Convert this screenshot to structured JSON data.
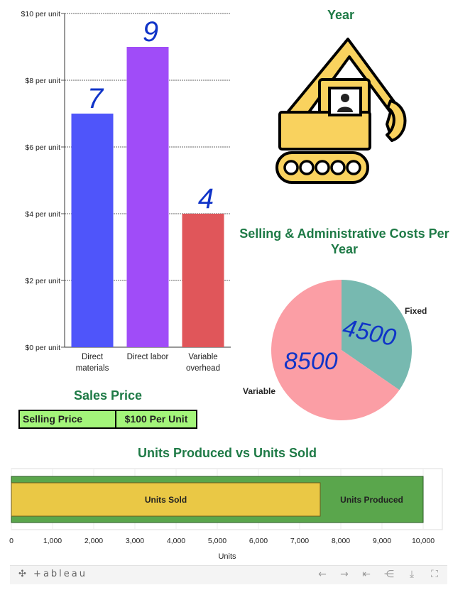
{
  "chart_data": [
    {
      "type": "bar",
      "title": "",
      "categories": [
        "Direct materials",
        "Direct labor",
        "Variable overhead"
      ],
      "category_lines": [
        [
          "Direct",
          "materials"
        ],
        [
          "Direct labor"
        ],
        [
          "Variable",
          "overhead"
        ]
      ],
      "values": [
        7,
        9,
        4
      ],
      "colors": [
        "#4f55fa",
        "#a04cf8",
        "#e0565a"
      ],
      "y_tick_values": [
        0,
        2,
        4,
        6,
        8,
        10
      ],
      "y_tick_labels": [
        "$0 per unit",
        "$2 per unit",
        "$4 per unit",
        "$6 per unit",
        "$8 per unit",
        "$10 per unit"
      ],
      "ylim": [
        0,
        10
      ],
      "annotations": [
        "7",
        "9",
        "4"
      ],
      "annotation_color": "#1034c8"
    },
    {
      "type": "pie",
      "title": "Selling & Administrative Costs Per Year",
      "labels": [
        "Fixed",
        "Variable"
      ],
      "values": [
        4500,
        8500
      ],
      "colors": [
        "#77b9b0",
        "#fb9ea5"
      ],
      "annotations": [
        "4500",
        "8500"
      ]
    },
    {
      "type": "bar",
      "orientation": "horizontal",
      "title": "Units Produced vs Units Sold",
      "series": [
        {
          "name": "Units Produced",
          "value": 10000,
          "color": "#5aa64c"
        },
        {
          "name": "Units Sold",
          "value": 7500,
          "color": "#eac845"
        }
      ],
      "x_ticks": [
        "0",
        "1,000",
        "2,000",
        "3,000",
        "4,000",
        "5,000",
        "6,000",
        "7,000",
        "8,000",
        "9,000",
        "10,000"
      ],
      "xlabel": "Units",
      "xlim": [
        0,
        10000
      ]
    }
  ],
  "top_right": {
    "title_fragment": "Year",
    "icon": "excavator-icon"
  },
  "sales": {
    "title": "Sales Price",
    "label": "Selling Price",
    "value": "$100 Per Unit"
  },
  "toolbar": {
    "logo": "+ableau",
    "icons": [
      "undo-icon",
      "redo-icon",
      "revert-icon",
      "share-icon",
      "download-icon",
      "fullscreen-icon"
    ]
  },
  "colors": {
    "title_green": "#1e7a46",
    "sales_bg": "#a3f57a"
  }
}
